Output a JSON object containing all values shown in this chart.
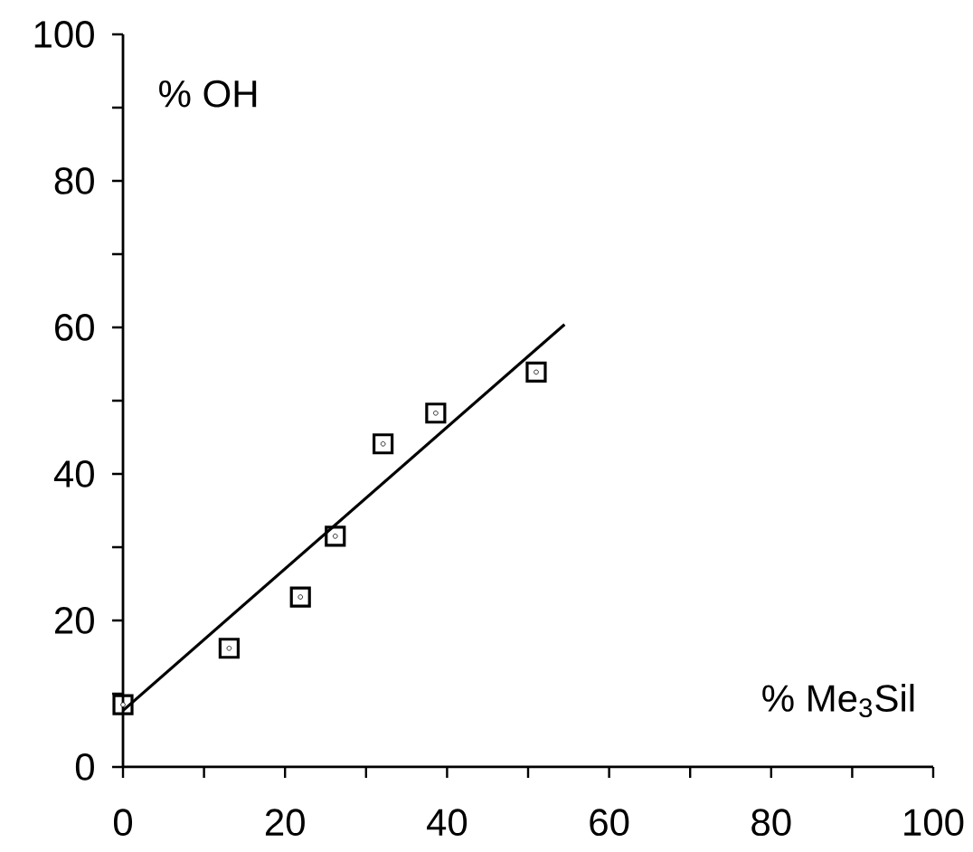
{
  "chart_data": {
    "type": "scatter",
    "xlabel": "% Me$_{3}$Sil",
    "ylabel": "% OH",
    "xlim": [
      0,
      100
    ],
    "ylim": [
      0,
      100
    ],
    "xticks": [
      0,
      {
        "value": 10,
        "label": null
      },
      20,
      {
        "value": 30,
        "label": null
      },
      40,
      {
        "value": 50,
        "label": null
      },
      60,
      {
        "value": 70,
        "label": null
      },
      80,
      {
        "value": 90,
        "label": null
      },
      100
    ],
    "yticks": [
      0,
      {
        "value": 10,
        "label": null
      },
      20,
      {
        "value": 30,
        "label": null
      },
      40,
      {
        "value": 50,
        "label": null
      },
      60,
      {
        "value": 70,
        "label": null
      },
      80,
      {
        "value": 90,
        "label": null
      },
      100
    ],
    "marker": "square",
    "grid": false,
    "series": [
      {
        "color": "#000000",
        "x": [
          0,
          13.1,
          21.9,
          26.2,
          32.1,
          38.6,
          51.0
        ],
        "values": [
          8.5,
          16.2,
          23.2,
          31.5,
          44.1,
          48.3,
          53.9
        ]
      },
      {
        "type": "line",
        "color": "#000000",
        "marker": "none",
        "line_style": "solid",
        "x": [
          0,
          54.5
        ],
        "values": [
          7.7,
          60.4
        ]
      }
    ]
  }
}
